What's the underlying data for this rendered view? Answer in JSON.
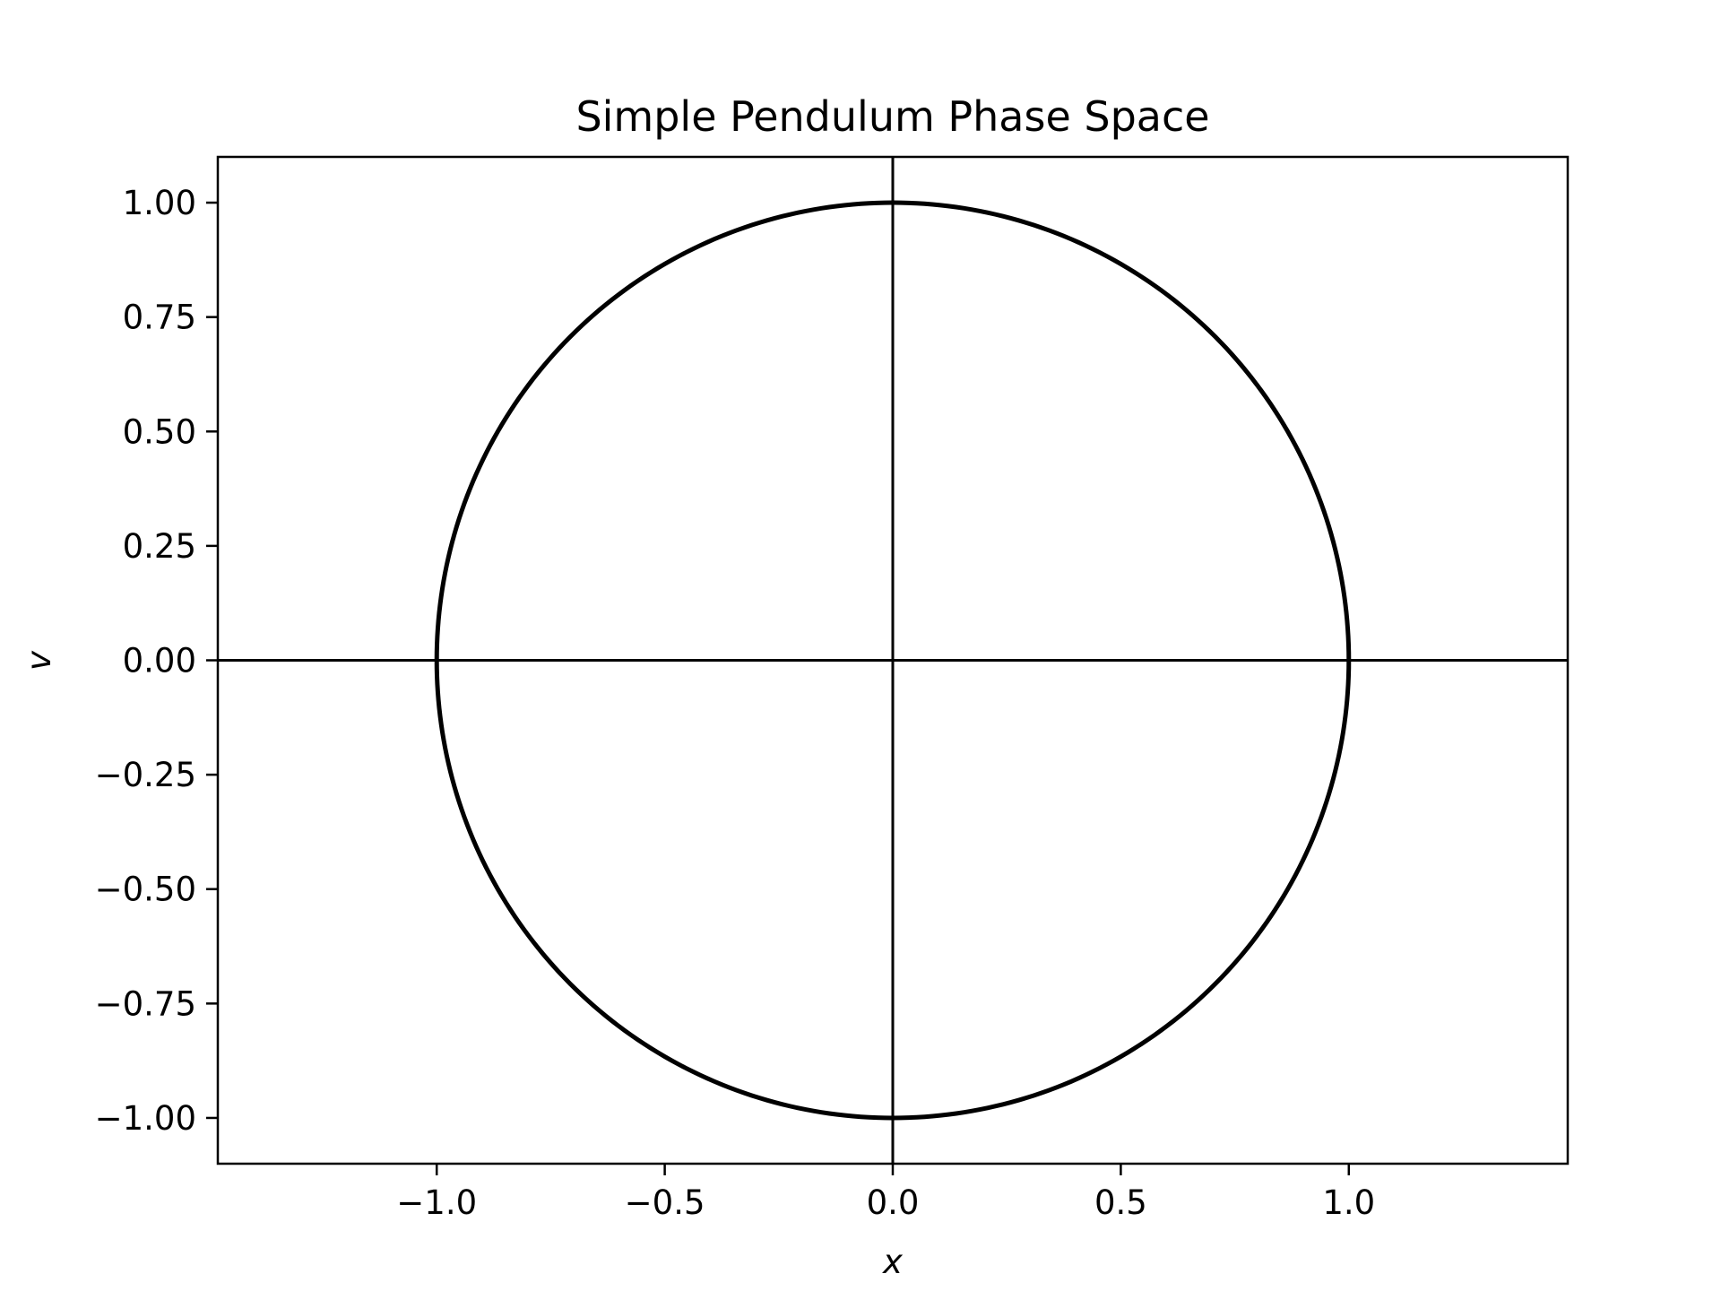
{
  "chart_data": {
    "type": "line",
    "title": "Simple Pendulum Phase Space",
    "xlabel": "x",
    "ylabel": "v",
    "xlim": [
      -1.48,
      1.48
    ],
    "ylim": [
      -1.1,
      1.1
    ],
    "x_ticks": [
      -1.0,
      -0.5,
      0.0,
      0.5,
      1.0
    ],
    "x_tick_labels": [
      "−1.0",
      "−0.5",
      "0.0",
      "0.5",
      "1.0"
    ],
    "y_ticks": [
      1.0,
      0.75,
      0.5,
      0.25,
      0.0,
      -0.25,
      -0.5,
      -0.75,
      -1.0
    ],
    "y_tick_labels": [
      "1.00",
      "0.75",
      "0.50",
      "0.25",
      "0.00",
      "−0.25",
      "−0.50",
      "−0.75",
      "−1.00"
    ],
    "grid": false,
    "reference_lines": {
      "x": 0,
      "y": 0
    },
    "series": [
      {
        "shape": "circle",
        "center": [
          0,
          0
        ],
        "radius": 1.0,
        "color": "#000000"
      }
    ]
  }
}
